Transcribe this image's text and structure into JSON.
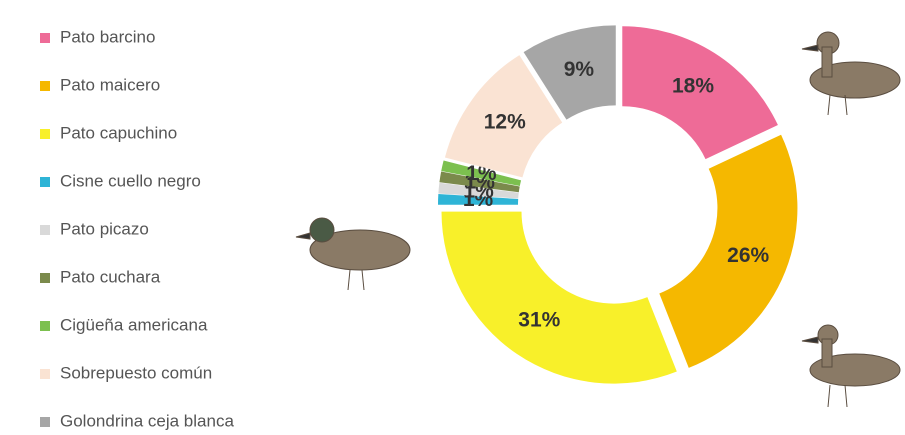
{
  "chart_data": {
    "type": "donut",
    "categories": [
      "Pato barcino",
      "Pato maicero",
      "Pato capuchino",
      "Cisne cuello negro",
      "Pato picazo",
      "Pato cuchara",
      "Cigüeña americana",
      "Sobrepuesto común",
      "Golondrina ceja blanca"
    ],
    "values": [
      18,
      26,
      31,
      1,
      1,
      1,
      1,
      12,
      9
    ],
    "value_labels": [
      "18%",
      "26%",
      "31%",
      "1%",
      "1%",
      "1%",
      "1%",
      "12%",
      "9%"
    ],
    "colors": [
      "#ee6b97",
      "#f5b800",
      "#f8f02a",
      "#2eb4d6",
      "#d9d9d9",
      "#7b8a4c",
      "#7cc04f",
      "#fae3d3",
      "#a6a6a6"
    ]
  }
}
